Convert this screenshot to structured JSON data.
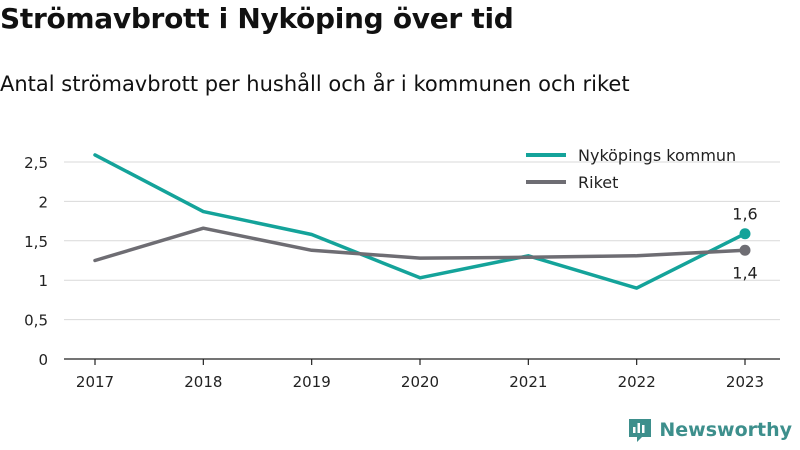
{
  "title": "Strömavbrott i Nyköping över tid",
  "subtitle": "Antal strömavbrott per hushåll och år i kommunen och riket",
  "brand": {
    "name": "Newsworthy",
    "color": "#3d8f8c"
  },
  "chart_data": {
    "type": "line",
    "x": [
      "2017",
      "2018",
      "2019",
      "2020",
      "2021",
      "2022",
      "2023"
    ],
    "ylim": [
      0,
      2.5
    ],
    "yticks": [
      {
        "value": 0,
        "label": "0"
      },
      {
        "value": 0.5,
        "label": "0,5"
      },
      {
        "value": 1,
        "label": "1"
      },
      {
        "value": 1.5,
        "label": "1,5"
      },
      {
        "value": 2,
        "label": "2"
      },
      {
        "value": 2.5,
        "label": "2,5"
      }
    ],
    "grid": true,
    "legend_position": "top-right",
    "series": [
      {
        "name": "Nyköpings kommun",
        "color": "#14a39a",
        "values": [
          2.59,
          1.87,
          1.58,
          1.03,
          1.31,
          0.9,
          1.59
        ],
        "end_label": "1,6"
      },
      {
        "name": "Riket",
        "color": "#6e6d73",
        "values": [
          1.25,
          1.66,
          1.38,
          1.28,
          1.29,
          1.31,
          1.38
        ],
        "end_label": "1,4"
      }
    ]
  }
}
